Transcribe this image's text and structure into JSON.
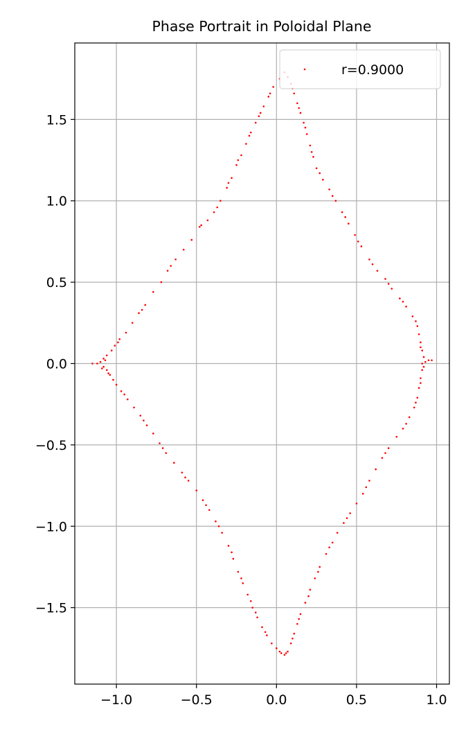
{
  "chart_data": {
    "type": "scatter",
    "title": "Phase Portrait in Poloidal Plane",
    "xlabel": "",
    "ylabel": "",
    "xlim": [
      -1.26,
      1.08
    ],
    "ylim": [
      -1.97,
      1.97
    ],
    "xticks": [
      -1.0,
      -0.5,
      0.0,
      0.5,
      1.0
    ],
    "xtick_labels": [
      "−1.0",
      "−0.5",
      "0.0",
      "0.5",
      "1.0"
    ],
    "yticks": [
      -1.5,
      -1.0,
      -0.5,
      0.0,
      0.5,
      1.0,
      1.5
    ],
    "ytick_labels": [
      "−1.5",
      "−1.0",
      "−0.5",
      "0.0",
      "0.5",
      "1.0",
      "1.5"
    ],
    "grid": true,
    "legend": {
      "position": "top-right",
      "entries": [
        "r=0.9000"
      ]
    },
    "series": [
      {
        "name": "r=0.9000",
        "color": "#ff0000",
        "marker": "dot",
        "points": [
          [
            0.05,
            1.79
          ],
          [
            0.02,
            1.75
          ],
          [
            -0.02,
            1.7
          ],
          [
            -0.05,
            1.64
          ],
          [
            -0.08,
            1.58
          ],
          [
            -0.1,
            1.54
          ],
          [
            -0.13,
            1.48
          ],
          [
            -0.16,
            1.42
          ],
          [
            -0.19,
            1.35
          ],
          [
            -0.22,
            1.28
          ],
          [
            -0.25,
            1.22
          ],
          [
            -0.28,
            1.14
          ],
          [
            -0.31,
            1.08
          ],
          [
            -0.35,
            1.0
          ],
          [
            -0.39,
            0.93
          ],
          [
            -0.43,
            0.88
          ],
          [
            -0.48,
            0.84
          ],
          [
            -0.53,
            0.76
          ],
          [
            -0.58,
            0.7
          ],
          [
            -0.63,
            0.64
          ],
          [
            -0.68,
            0.57
          ],
          [
            -0.72,
            0.5
          ],
          [
            -0.77,
            0.44
          ],
          [
            -0.82,
            0.36
          ],
          [
            -0.86,
            0.31
          ],
          [
            -0.9,
            0.25
          ],
          [
            -0.94,
            0.19
          ],
          [
            -0.98,
            0.15
          ],
          [
            -1.01,
            0.11
          ],
          [
            -1.03,
            0.08
          ],
          [
            -1.06,
            0.05
          ],
          [
            -1.08,
            0.03
          ],
          [
            -1.1,
            0.01
          ],
          [
            -1.15,
            0.0
          ],
          [
            -1.12,
            0.0
          ],
          [
            -1.08,
            -0.02
          ],
          [
            -1.06,
            -0.04
          ],
          [
            -1.04,
            -0.07
          ],
          [
            -1.02,
            -0.1
          ],
          [
            -1.0,
            -0.13
          ],
          [
            -0.97,
            -0.17
          ],
          [
            -0.93,
            -0.22
          ],
          [
            -0.89,
            -0.27
          ],
          [
            -0.85,
            -0.32
          ],
          [
            -0.81,
            -0.38
          ],
          [
            -0.77,
            -0.43
          ],
          [
            -0.73,
            -0.49
          ],
          [
            -0.69,
            -0.55
          ],
          [
            -0.64,
            -0.61
          ],
          [
            -0.59,
            -0.67
          ],
          [
            -0.55,
            -0.72
          ],
          [
            -0.5,
            -0.78
          ],
          [
            -0.46,
            -0.84
          ],
          [
            -0.42,
            -0.9
          ],
          [
            -0.38,
            -0.97
          ],
          [
            -0.34,
            -1.04
          ],
          [
            -0.3,
            -1.12
          ],
          [
            -0.27,
            -1.2
          ],
          [
            -0.24,
            -1.28
          ],
          [
            -0.21,
            -1.35
          ],
          [
            -0.18,
            -1.42
          ],
          [
            -0.15,
            -1.5
          ],
          [
            -0.12,
            -1.56
          ],
          [
            -0.09,
            -1.62
          ],
          [
            -0.06,
            -1.67
          ],
          [
            -0.03,
            -1.72
          ],
          [
            0.0,
            -1.75
          ],
          [
            0.03,
            -1.78
          ],
          [
            0.05,
            -1.79
          ],
          [
            0.07,
            -1.77
          ],
          [
            0.09,
            -1.72
          ],
          [
            0.11,
            -1.66
          ],
          [
            0.13,
            -1.6
          ],
          [
            0.15,
            -1.54
          ],
          [
            0.18,
            -1.47
          ],
          [
            0.21,
            -1.39
          ],
          [
            0.24,
            -1.32
          ],
          [
            0.27,
            -1.25
          ],
          [
            0.31,
            -1.17
          ],
          [
            0.35,
            -1.1
          ],
          [
            0.38,
            -1.04
          ],
          [
            0.42,
            -0.98
          ],
          [
            0.46,
            -0.92
          ],
          [
            0.5,
            -0.86
          ],
          [
            0.54,
            -0.8
          ],
          [
            0.58,
            -0.72
          ],
          [
            0.62,
            -0.65
          ],
          [
            0.66,
            -0.58
          ],
          [
            0.7,
            -0.52
          ],
          [
            0.75,
            -0.45
          ],
          [
            0.79,
            -0.4
          ],
          [
            0.83,
            -0.33
          ],
          [
            0.86,
            -0.27
          ],
          [
            0.88,
            -0.21
          ],
          [
            0.89,
            -0.15
          ],
          [
            0.9,
            -0.09
          ],
          [
            0.91,
            -0.04
          ],
          [
            0.91,
            0.0
          ],
          [
            0.93,
            0.01
          ],
          [
            0.97,
            0.02
          ],
          [
            0.92,
            0.04
          ],
          [
            0.91,
            0.08
          ],
          [
            0.9,
            0.13
          ],
          [
            0.89,
            0.18
          ],
          [
            0.88,
            0.23
          ],
          [
            0.85,
            0.29
          ],
          [
            0.81,
            0.35
          ],
          [
            0.77,
            0.4
          ],
          [
            0.72,
            0.46
          ],
          [
            0.68,
            0.52
          ],
          [
            0.63,
            0.57
          ],
          [
            0.58,
            0.64
          ],
          [
            0.53,
            0.72
          ],
          [
            0.49,
            0.79
          ],
          [
            0.45,
            0.86
          ],
          [
            0.41,
            0.93
          ],
          [
            0.37,
            1.0
          ],
          [
            0.33,
            1.07
          ],
          [
            0.29,
            1.13
          ],
          [
            0.25,
            1.2
          ],
          [
            0.23,
            1.27
          ],
          [
            0.21,
            1.34
          ],
          [
            0.19,
            1.41
          ],
          [
            0.17,
            1.48
          ],
          [
            0.15,
            1.54
          ],
          [
            0.13,
            1.6
          ],
          [
            0.11,
            1.66
          ],
          [
            0.09,
            1.72
          ],
          [
            0.07,
            1.76
          ],
          [
            -0.04,
            1.66
          ],
          [
            -0.11,
            1.52
          ],
          [
            -0.17,
            1.4
          ],
          [
            -0.24,
            1.25
          ],
          [
            -0.3,
            1.11
          ],
          [
            -0.37,
            0.96
          ],
          [
            -0.47,
            0.85
          ],
          [
            -0.66,
            0.6
          ],
          [
            -0.84,
            0.33
          ],
          [
            -0.99,
            0.13
          ],
          [
            -1.07,
            0.02
          ],
          [
            -1.09,
            -0.03
          ],
          [
            -1.05,
            -0.06
          ],
          [
            -0.95,
            -0.19
          ],
          [
            -0.83,
            -0.35
          ],
          [
            -0.71,
            -0.52
          ],
          [
            -0.57,
            -0.7
          ],
          [
            -0.44,
            -0.87
          ],
          [
            -0.36,
            -1.0
          ],
          [
            -0.28,
            -1.16
          ],
          [
            -0.22,
            -1.32
          ],
          [
            -0.16,
            -1.46
          ],
          [
            -0.13,
            -1.53
          ],
          [
            -0.07,
            -1.65
          ],
          [
            0.02,
            -1.77
          ],
          [
            0.06,
            -1.78
          ],
          [
            0.1,
            -1.69
          ],
          [
            0.14,
            -1.57
          ],
          [
            0.2,
            -1.43
          ],
          [
            0.26,
            -1.28
          ],
          [
            0.33,
            -1.13
          ],
          [
            0.44,
            -0.95
          ],
          [
            0.56,
            -0.76
          ],
          [
            0.68,
            -0.55
          ],
          [
            0.81,
            -0.37
          ],
          [
            0.87,
            -0.24
          ],
          [
            0.9,
            -0.12
          ],
          [
            0.92,
            -0.02
          ],
          [
            0.95,
            0.02
          ],
          [
            0.9,
            0.1
          ],
          [
            0.87,
            0.26
          ],
          [
            0.79,
            0.38
          ],
          [
            0.7,
            0.49
          ],
          [
            0.6,
            0.61
          ],
          [
            0.51,
            0.75
          ],
          [
            0.43,
            0.9
          ],
          [
            0.35,
            1.03
          ],
          [
            0.27,
            1.17
          ],
          [
            0.22,
            1.3
          ],
          [
            0.18,
            1.45
          ],
          [
            0.14,
            1.57
          ],
          [
            0.1,
            1.69
          ]
        ]
      }
    ]
  }
}
